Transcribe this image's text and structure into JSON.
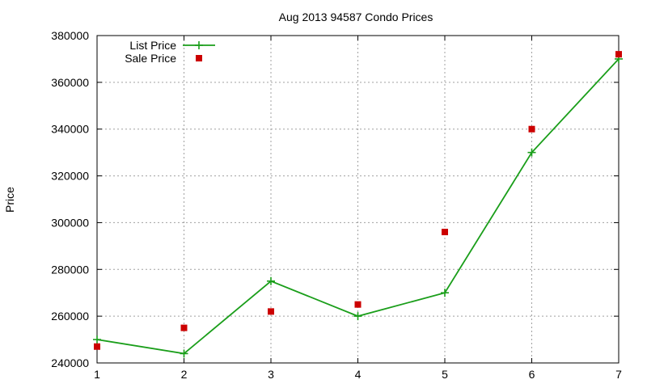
{
  "chart_data": {
    "type": "line",
    "title": "Aug 2013 94587 Condo Prices",
    "xlabel": "",
    "ylabel": "Price",
    "x": [
      1,
      2,
      3,
      4,
      5,
      6,
      7
    ],
    "xlim": [
      1,
      7
    ],
    "ylim": [
      240000,
      380000
    ],
    "y_ticks": [
      240000,
      260000,
      280000,
      300000,
      320000,
      340000,
      360000,
      380000
    ],
    "grid": true,
    "legend_position": "top-left",
    "series": [
      {
        "name": "List Price",
        "style": "lines+points",
        "marker": "plus",
        "color": "#1a9e1a",
        "values": [
          250000,
          244000,
          275000,
          260000,
          270000,
          330000,
          370000
        ]
      },
      {
        "name": "Sale Price",
        "style": "points",
        "marker": "square",
        "color": "#cc0000",
        "values": [
          247000,
          255000,
          262000,
          265000,
          296000,
          340000,
          372000
        ]
      }
    ]
  }
}
